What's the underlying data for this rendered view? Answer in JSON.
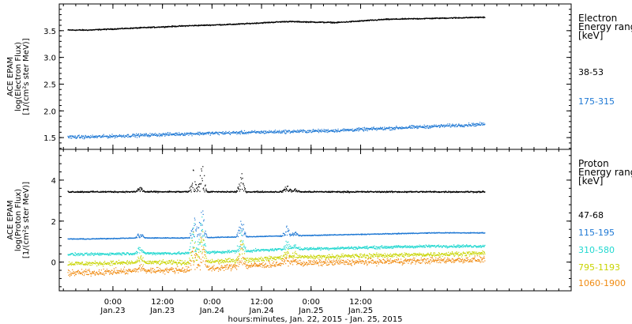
{
  "chart_data": [
    {
      "type": "scatter",
      "panel": "electron",
      "ylabel_lines": [
        "ACE EPAM",
        "log(Electron Flux)",
        "[1/(cm²s ster MeV)]"
      ],
      "ylim": [
        1.28,
        4.0
      ],
      "yticks": [
        1.5,
        2.0,
        2.5,
        3.0,
        3.5
      ],
      "ytick_labels": [
        "1.5",
        "2.0",
        "2.5",
        "3.0",
        "3.5"
      ],
      "legend_title": [
        "Electron",
        "Energy ranges",
        "[keV]"
      ],
      "series": [
        {
          "name": "38-53",
          "color": "#000000",
          "x": [
            0,
            12,
            24,
            36,
            48,
            60,
            72,
            84,
            96
          ],
          "y": [
            3.52,
            3.56,
            3.6,
            3.63,
            3.68,
            3.66,
            3.72,
            3.74,
            3.76
          ]
        },
        {
          "name": "175-315",
          "color": "#1e78d4",
          "x": [
            0,
            12,
            24,
            36,
            48,
            60,
            72,
            84,
            96
          ],
          "y": [
            1.52,
            1.55,
            1.58,
            1.6,
            1.62,
            1.64,
            1.68,
            1.72,
            1.76
          ]
        }
      ]
    },
    {
      "type": "scatter",
      "panel": "proton",
      "ylabel_lines": [
        "ACE EPAM",
        "log(Proton Flux)",
        "[1/(cm²s ster MeV)]"
      ],
      "ylim": [
        -1.4,
        5.5
      ],
      "yticks": [
        0,
        2,
        4
      ],
      "ytick_labels": [
        "0",
        "2",
        "4"
      ],
      "legend_title": [
        "Proton",
        "Energy ranges",
        "[keV]"
      ],
      "series": [
        {
          "name": "47-68",
          "color": "#000000",
          "x": [
            0,
            12,
            24,
            36,
            48,
            60,
            72,
            84,
            96
          ],
          "y": [
            3.45,
            3.45,
            3.45,
            3.45,
            3.45,
            3.45,
            3.45,
            3.45,
            3.45
          ]
        },
        {
          "name": "115-195",
          "color": "#1e78d4",
          "x": [
            0,
            12,
            24,
            36,
            48,
            60,
            72,
            84,
            96
          ],
          "y": [
            1.15,
            1.2,
            1.2,
            1.25,
            1.3,
            1.35,
            1.4,
            1.45,
            1.45
          ]
        },
        {
          "name": "310-580",
          "color": "#22d8d0",
          "x": [
            0,
            12,
            24,
            36,
            48,
            60,
            72,
            84,
            96
          ],
          "y": [
            0.4,
            0.45,
            0.45,
            0.55,
            0.65,
            0.7,
            0.75,
            0.8,
            0.8
          ]
        },
        {
          "name": "795-1193",
          "color": "#c8d400",
          "x": [
            0,
            12,
            24,
            36,
            48,
            60,
            72,
            84,
            96
          ],
          "y": [
            -0.05,
            0.0,
            0.0,
            0.1,
            0.25,
            0.3,
            0.35,
            0.4,
            0.45
          ]
        },
        {
          "name": "1060-1900",
          "color": "#f08a10",
          "x": [
            0,
            12,
            24,
            36,
            48,
            60,
            72,
            84,
            96
          ],
          "y": [
            -0.5,
            -0.4,
            -0.35,
            -0.2,
            -0.05,
            0.0,
            0.05,
            0.1,
            0.15
          ]
        }
      ]
    }
  ],
  "x_axis": {
    "xlim_hours": [
      -7,
      117
    ],
    "ticks": [
      {
        "hour": 6,
        "time": "0:00",
        "date": "Jan.23"
      },
      {
        "hour": 18,
        "time": "12:00",
        "date": "Jan.23"
      },
      {
        "hour": 30,
        "time": "0:00",
        "date": "Jan.24"
      },
      {
        "hour": 42,
        "time": "12:00",
        "date": "Jan.24"
      },
      {
        "hour": 54,
        "time": "0:00",
        "date": "Jan.25"
      },
      {
        "hour": 66,
        "time": "12:00",
        "date": "Jan.25"
      }
    ],
    "label": "hours:minutes, Jan. 22, 2015 - Jan. 25, 2015"
  }
}
